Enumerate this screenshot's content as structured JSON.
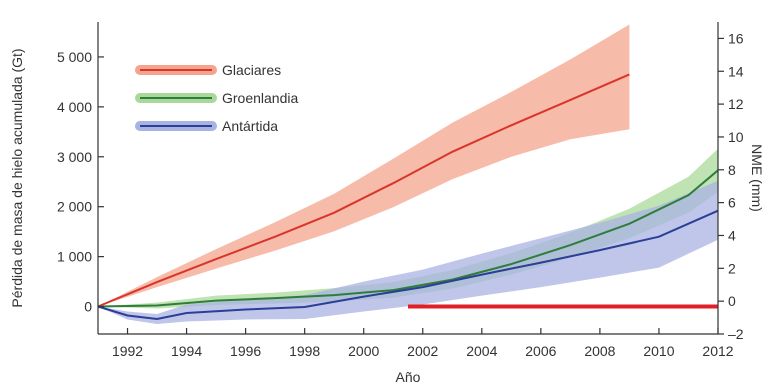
{
  "chart_data": {
    "type": "line",
    "xlabel": "Año",
    "ylabel": "Pérdida de masa de hielo acumulada (Gt)",
    "y2label": "NME (mm)",
    "xlim": [
      1991,
      2012
    ],
    "ylim": [
      -550,
      5700
    ],
    "y2lim": [
      -2,
      17
    ],
    "x_ticks": [
      1992,
      1994,
      1996,
      1998,
      2000,
      2002,
      2004,
      2006,
      2008,
      2010,
      2012
    ],
    "y_ticks": [
      {
        "value": 0,
        "label": "0"
      },
      {
        "value": 1000,
        "label": "1 000"
      },
      {
        "value": 2000,
        "label": "2 000"
      },
      {
        "value": 3000,
        "label": "3 000"
      },
      {
        "value": 4000,
        "label": "4 000"
      },
      {
        "value": 5000,
        "label": "5 000"
      }
    ],
    "y2_ticks": [
      -2,
      0,
      2,
      4,
      6,
      8,
      10,
      12,
      14,
      16
    ],
    "legend_position": "top-left",
    "series": [
      {
        "name": "Glaciares",
        "color": "#d9352b",
        "band_color": "#f4a48c",
        "x": [
          1991,
          1993,
          1995,
          1997,
          1999,
          2001,
          2003,
          2005,
          2007,
          2009
        ],
        "values": [
          0,
          490,
          950,
          1400,
          1880,
          2470,
          3100,
          3630,
          4140,
          4650
        ],
        "lower": [
          0,
          390,
          760,
          1120,
          1510,
          1990,
          2550,
          3000,
          3350,
          3550
        ],
        "upper": [
          0,
          590,
          1150,
          1690,
          2260,
          2960,
          3680,
          4300,
          4950,
          5650
        ]
      },
      {
        "name": "Groenlandia",
        "color": "#2f7d3a",
        "band_color": "#a9d99a",
        "x": [
          1991,
          1993,
          1995,
          1997,
          1999,
          2001,
          2003,
          2005,
          2007,
          2009,
          2011,
          2012
        ],
        "values": [
          0,
          20,
          120,
          170,
          230,
          330,
          540,
          850,
          1230,
          1660,
          2230,
          2730
        ],
        "lower": [
          0,
          -40,
          30,
          60,
          100,
          180,
          360,
          640,
          980,
          1370,
          1880,
          2300
        ],
        "upper": [
          0,
          80,
          220,
          280,
          370,
          490,
          730,
          1070,
          1480,
          1960,
          2600,
          3160
        ]
      },
      {
        "name": "Antártida",
        "color": "#2b3f96",
        "band_color": "#a9b3e3",
        "x": [
          1991,
          1992,
          1993,
          1994,
          1996,
          1998,
          2000,
          2002,
          2004,
          2006,
          2008,
          2010,
          2012
        ],
        "values": [
          0,
          -180,
          -250,
          -130,
          -60,
          -10,
          200,
          390,
          640,
          880,
          1130,
          1400,
          1920
        ],
        "lower": [
          0,
          -260,
          -350,
          -300,
          -260,
          -250,
          -100,
          40,
          220,
          390,
          580,
          780,
          1340
        ],
        "upper": [
          0,
          -100,
          -150,
          40,
          140,
          230,
          500,
          740,
          1060,
          1370,
          1680,
          2020,
          2520
        ]
      }
    ],
    "zero_line_color": "#e01f26"
  }
}
